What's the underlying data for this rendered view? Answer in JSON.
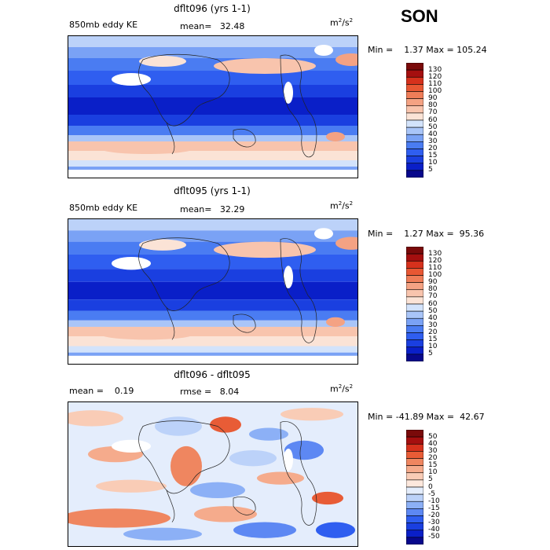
{
  "season": "SON",
  "panels": [
    {
      "title": "dflt096 (yrs 1-1)",
      "left_label": "850mb eddy KE",
      "mean_label": "mean=",
      "mean_value": "32.48",
      "units_base": "m",
      "units_exp1": "2",
      "units_mid": "/s",
      "units_exp2": "2",
      "minmax_text": "Min =    1.37 Max = 105.24",
      "colorbar_ticks": [
        "130",
        "120",
        "110",
        "100",
        "90",
        "80",
        "70",
        "60",
        "50",
        "40",
        "30",
        "20",
        "15",
        "10",
        "5"
      ]
    },
    {
      "title": "dflt095 (yrs 1-1)",
      "left_label": "850mb eddy KE",
      "mean_label": "mean=",
      "mean_value": "32.29",
      "units_base": "m",
      "units_exp1": "2",
      "units_mid": "/s",
      "units_exp2": "2",
      "minmax_text": "Min =    1.27 Max =  95.36",
      "colorbar_ticks": [
        "130",
        "120",
        "110",
        "100",
        "90",
        "80",
        "70",
        "60",
        "50",
        "40",
        "30",
        "20",
        "15",
        "10",
        "5"
      ]
    },
    {
      "title": "dflt096 - dflt095",
      "left_label": "mean =    0.19",
      "mean_label": "rmse =",
      "mean_value": "8.04",
      "units_base": "m",
      "units_exp1": "2",
      "units_mid": "/s",
      "units_exp2": "2",
      "minmax_text": "Min = -41.89 Max =  42.67",
      "colorbar_ticks": [
        "50",
        "40",
        "30",
        "20",
        "15",
        "10",
        "5",
        "0",
        "-5",
        "-10",
        "-15",
        "-20",
        "-30",
        "-40",
        "-50"
      ]
    }
  ],
  "colors": {
    "abs_scale": [
      "#08088c",
      "#0a1fc8",
      "#1a3fe0",
      "#2f5ef0",
      "#4a7cf2",
      "#7aa2f5",
      "#a9c5f8",
      "#d3e3fb",
      "#fbe3d6",
      "#f8c4ad",
      "#f4a283",
      "#ef7d58",
      "#e85733",
      "#d6311c",
      "#a50f0f",
      "#7a0a0a"
    ],
    "diff_scale": [
      "#08088c",
      "#0a1fc8",
      "#1a3fe0",
      "#2f5ef0",
      "#5d88f3",
      "#8cb0f6",
      "#bcd2f9",
      "#e4edfc",
      "#fde8dd",
      "#f9ccb6",
      "#f5ab8c",
      "#ef8660",
      "#e85c36",
      "#d6311c",
      "#a50f0f",
      "#7a0a0a"
    ]
  },
  "chart_data": [
    {
      "type": "heatmap",
      "title": "dflt096 (yrs 1-1)",
      "field": "850mb eddy KE",
      "units": "m2/s2",
      "mean": 32.48,
      "min": 1.37,
      "max": 105.24,
      "levels": [
        5,
        10,
        15,
        20,
        30,
        40,
        50,
        60,
        70,
        80,
        90,
        100,
        110,
        120,
        130
      ]
    },
    {
      "type": "heatmap",
      "title": "dflt095 (yrs 1-1)",
      "field": "850mb eddy KE",
      "units": "m2/s2",
      "mean": 32.29,
      "min": 1.27,
      "max": 95.36,
      "levels": [
        5,
        10,
        15,
        20,
        30,
        40,
        50,
        60,
        70,
        80,
        90,
        100,
        110,
        120,
        130
      ]
    },
    {
      "type": "heatmap",
      "title": "dflt096 - dflt095",
      "units": "m2/s2",
      "mean": 0.19,
      "rmse": 8.04,
      "min": -41.89,
      "max": 42.67,
      "levels": [
        -50,
        -40,
        -30,
        -20,
        -15,
        -10,
        -5,
        0,
        5,
        10,
        15,
        20,
        30,
        40,
        50
      ]
    }
  ]
}
